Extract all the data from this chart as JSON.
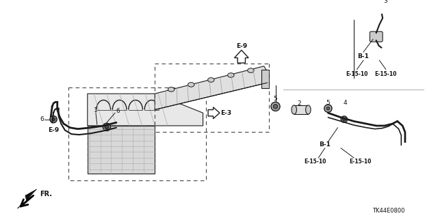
{
  "bg_color": "#ffffff",
  "labels": {
    "e9_top": "E-9",
    "e3": "E-3",
    "e9_bottom": "E-9",
    "b1_top": "B-1",
    "b1_bottom": "B-1",
    "e1510_tl": "E-15-10",
    "e1510_tr": "E-15-10",
    "e1510_bl": "E-15-10",
    "e1510_br": "E-15-10",
    "num1": "1",
    "num2": "2",
    "num3": "3",
    "num4": "4",
    "num5a": "5",
    "num5b": "5",
    "num6a": "6",
    "num6b": "6",
    "fr": "FR.",
    "diagram_code": "TK44E0800"
  },
  "colors": {
    "line": "#1a1a1a",
    "bg": "#ffffff",
    "text": "#111111",
    "gray_light": "#cccccc",
    "gray_mid": "#888888",
    "gray_dark": "#555555"
  }
}
